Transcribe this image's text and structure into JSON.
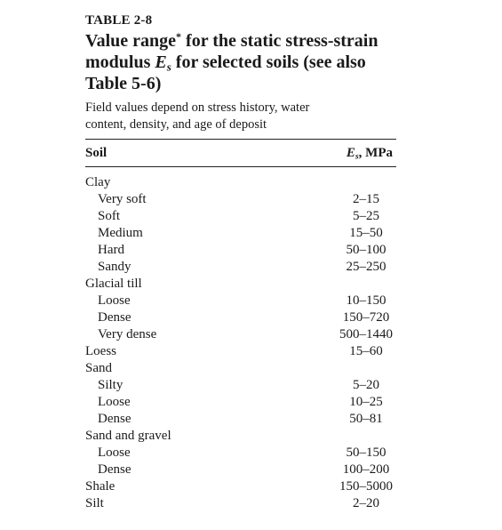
{
  "table": {
    "number": "TABLE 2-8",
    "title_lead": "Value range",
    "title_star": "*",
    "title_mid": " for the static stress-strain modulus ",
    "title_symbol": "E",
    "title_subscript": "s",
    "title_tail": " for selected soils (see also Table 5-6)",
    "note": "Field values depend on stress history, water content, density, and age of deposit",
    "header": {
      "soil": "Soil",
      "es_symbol": "E",
      "es_subscript": "s",
      "es_unit": ", MPa"
    },
    "rows": [
      {
        "soil": "Clay",
        "value": "",
        "indent": false
      },
      {
        "soil": "Very soft",
        "value": "2–15",
        "indent": true
      },
      {
        "soil": "Soft",
        "value": "5–25",
        "indent": true
      },
      {
        "soil": "Medium",
        "value": "15–50",
        "indent": true
      },
      {
        "soil": "Hard",
        "value": "50–100",
        "indent": true
      },
      {
        "soil": "Sandy",
        "value": "25–250",
        "indent": true
      },
      {
        "soil": "Glacial till",
        "value": "",
        "indent": false
      },
      {
        "soil": "Loose",
        "value": "10–150",
        "indent": true
      },
      {
        "soil": "Dense",
        "value": "150–720",
        "indent": true
      },
      {
        "soil": "Very dense",
        "value": "500–1440",
        "indent": true
      },
      {
        "soil": "Loess",
        "value": "15–60",
        "indent": false
      },
      {
        "soil": "Sand",
        "value": "",
        "indent": false
      },
      {
        "soil": "Silty",
        "value": "5–20",
        "indent": true
      },
      {
        "soil": "Loose",
        "value": "10–25",
        "indent": true
      },
      {
        "soil": "Dense",
        "value": "50–81",
        "indent": true
      },
      {
        "soil": "Sand and gravel",
        "value": "",
        "indent": false
      },
      {
        "soil": "Loose",
        "value": "50–150",
        "indent": true
      },
      {
        "soil": "Dense",
        "value": "100–200",
        "indent": true
      },
      {
        "soil": "Shale",
        "value": "150–5000",
        "indent": false
      },
      {
        "soil": "Silt",
        "value": "2–20",
        "indent": false
      }
    ]
  }
}
